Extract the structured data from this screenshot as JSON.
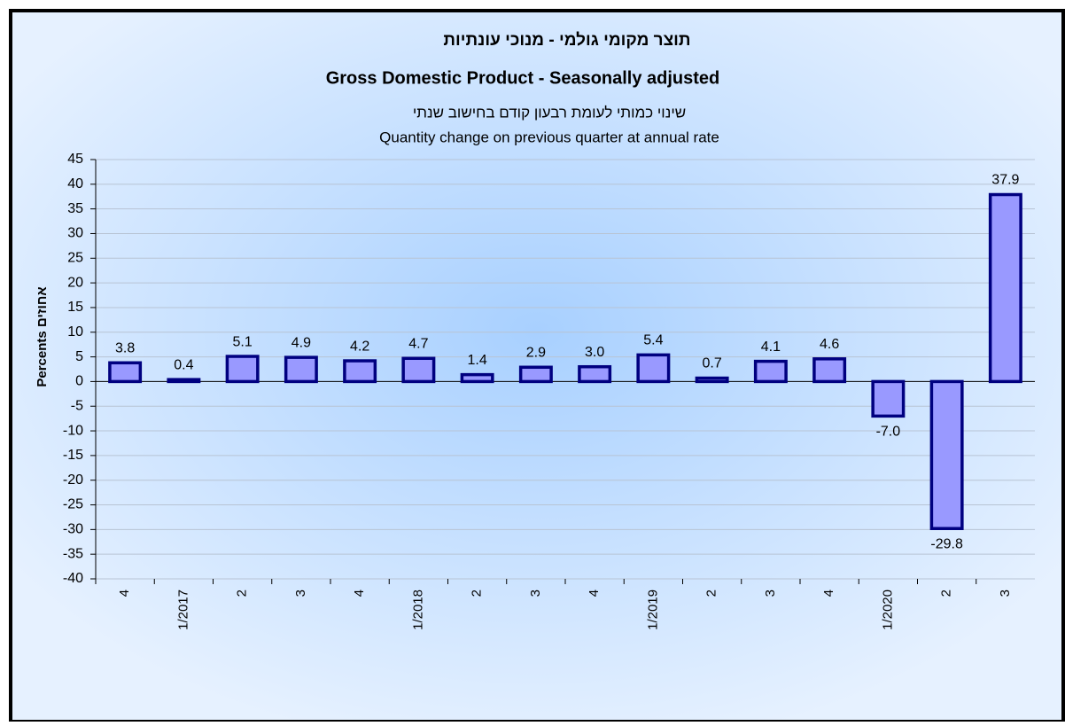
{
  "chart_data": {
    "type": "bar",
    "title": [
      "תוצר מקומי גולמי - מנוכי עונתיות",
      "Gross Domestic Product - Seasonally adjusted"
    ],
    "subtitle": [
      "שינוי כמותי לעומת רבעון קודם בחישוב שנתי",
      "Quantity change on previous quarter at annual rate"
    ],
    "ylabel": "Percents אחוזים",
    "categories": [
      "4",
      "1/2017",
      "2",
      "3",
      "4",
      "1/2018",
      "2",
      "3",
      "4",
      "1/2019",
      "2",
      "3",
      "4",
      "1/2020",
      "2",
      "3"
    ],
    "values": [
      3.8,
      0.4,
      5.1,
      4.9,
      4.2,
      4.7,
      1.4,
      2.9,
      3.0,
      5.4,
      0.7,
      4.1,
      4.6,
      -7.0,
      -29.8,
      37.9
    ],
    "value_labels": [
      "3.8",
      "0.4",
      "5.1",
      "4.9",
      "4.2",
      "4.7",
      "1.4",
      "2.9",
      "3.0",
      "5.4",
      "0.7",
      "4.1",
      "4.6",
      "-7.0",
      "-29.8",
      "37.9"
    ],
    "color": "#9999ff",
    "edge_color": "#000080",
    "ylim": [
      -40,
      45
    ],
    "yticks": [
      -40,
      -35,
      -30,
      -25,
      -20,
      -15,
      -10,
      -5,
      0,
      5,
      10,
      15,
      20,
      25,
      30,
      35,
      40,
      45
    ],
    "grid": true
  }
}
